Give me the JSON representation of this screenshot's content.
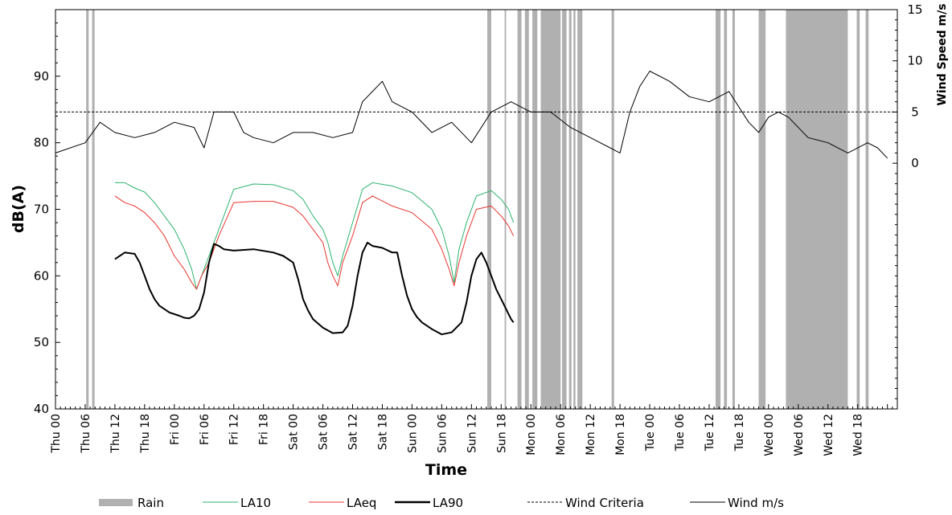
{
  "chart_data": {
    "type": "line",
    "xlabel": "Time",
    "ylabel": "dB(A)",
    "y2label": "Wind Speed m/s",
    "ylim": [
      40,
      100
    ],
    "yticks": [
      40,
      50,
      60,
      70,
      80,
      90
    ],
    "y2lim": [
      -24,
      15
    ],
    "y2ticks": [
      0,
      5,
      10,
      15
    ],
    "xlim_hours": [
      0,
      170
    ],
    "x_tick_labels": [
      "Thu 00",
      "Thu 06",
      "Thu 12",
      "Thu 18",
      "Fri 00",
      "Fri 06",
      "Fri 12",
      "Fri 18",
      "Sat 00",
      "Sat 06",
      "Sat 12",
      "Sat 18",
      "Sun 00",
      "Sun 06",
      "Sun 12",
      "Sun 18",
      "Mon 00",
      "Mon 06",
      "Mon 12",
      "Mon 18",
      "Tue 00",
      "Tue 06",
      "Tue 12",
      "Tue 18",
      "Wed 00",
      "Wed 06",
      "Wed 12",
      "Wed 18"
    ],
    "wind_criteria": 5,
    "rain_periods": [
      [
        6.2,
        6.7
      ],
      [
        7.4,
        7.9
      ],
      [
        87.2,
        88.0
      ],
      [
        90.7,
        91.0
      ],
      [
        93.3,
        94.1
      ],
      [
        94.8,
        95.6
      ],
      [
        96.3,
        97.3
      ],
      [
        98.0,
        102.0
      ],
      [
        102.3,
        103.2
      ],
      [
        103.7,
        104.2
      ],
      [
        104.6,
        105.0
      ],
      [
        105.4,
        106.4
      ],
      [
        112.3,
        112.8
      ],
      [
        133.3,
        134.3
      ],
      [
        135.0,
        135.6
      ],
      [
        136.7,
        137.2
      ],
      [
        142.0,
        143.4
      ],
      [
        147.5,
        160.0
      ],
      [
        161.8,
        162.4
      ],
      [
        163.6,
        164.2
      ]
    ],
    "series": [
      {
        "name": "LA10",
        "color": "#2db36f",
        "x": [
          12,
          14,
          16,
          18,
          20,
          22,
          24,
          26,
          27.5,
          28.5,
          29.5,
          31,
          33,
          36,
          40,
          44,
          48,
          50,
          52,
          54,
          55,
          56,
          57,
          58,
          60,
          62,
          64,
          68,
          72,
          76,
          78,
          79.5,
          80.5,
          81.5,
          83,
          85,
          88,
          90,
          91.5,
          92.5
        ],
        "y": [
          74,
          74,
          73.2,
          72.6,
          71,
          69,
          67,
          64,
          61,
          58,
          60,
          63,
          67,
          73,
          73.8,
          73.7,
          72.8,
          71.5,
          69,
          67,
          65,
          62,
          60,
          63,
          68,
          73,
          74,
          73.5,
          72.5,
          70,
          67,
          63,
          59,
          64,
          68,
          72,
          72.8,
          71.5,
          70,
          68
        ]
      },
      {
        "name": "LAeq",
        "color": "#e8362f",
        "x": [
          12,
          14,
          16,
          18,
          20,
          22,
          24,
          26,
          27.5,
          28.5,
          29.5,
          31,
          33,
          36,
          40,
          44,
          48,
          50,
          52,
          54,
          55,
          56,
          57,
          58,
          60,
          62,
          64,
          68,
          72,
          76,
          78,
          79.5,
          80.5,
          81.5,
          83,
          85,
          88,
          90,
          91.5,
          92.5
        ],
        "y": [
          72,
          71,
          70.5,
          69.5,
          68,
          66,
          63,
          61,
          59,
          58,
          60,
          62,
          66,
          71,
          71.2,
          71.2,
          70.3,
          69,
          67,
          65,
          62,
          60,
          58.5,
          62,
          66,
          71,
          72,
          70.5,
          69.5,
          67,
          64,
          61,
          58.5,
          62,
          66,
          70,
          70.5,
          69,
          67.5,
          66
        ]
      },
      {
        "name": "LA90",
        "color": "#000000",
        "x": [
          12,
          14,
          16,
          17,
          18,
          19,
          20,
          21,
          23,
          25,
          26,
          27,
          28,
          29,
          30,
          31,
          32,
          33,
          34,
          36,
          40,
          44,
          46,
          48,
          49,
          50,
          51,
          52,
          54,
          56,
          58,
          59,
          60,
          61,
          62,
          63,
          64,
          66,
          68,
          69,
          70,
          71,
          72,
          73,
          74,
          76,
          78,
          80,
          82,
          83,
          84,
          85,
          86,
          87,
          88,
          89,
          90,
          91,
          92,
          92.5
        ],
        "y": [
          62.5,
          63.5,
          63.3,
          62,
          60,
          58,
          56.5,
          55.5,
          54.5,
          54,
          53.7,
          53.6,
          54,
          55,
          57.5,
          62,
          64.8,
          64.5,
          64,
          63.8,
          64,
          63.5,
          63,
          62,
          59.5,
          56.5,
          54.8,
          53.5,
          52.2,
          51.4,
          51.5,
          52.5,
          55.5,
          60,
          63.5,
          65,
          64.5,
          64.2,
          63.5,
          63.5,
          60,
          57,
          55,
          53.8,
          53,
          52,
          51.2,
          51.5,
          53,
          56,
          60,
          62.5,
          63.5,
          62,
          60,
          58,
          56.5,
          55,
          53.5,
          53
        ]
      },
      {
        "name": "Wind m/s",
        "color": "#000000",
        "axis": "secondary",
        "x": [
          0,
          6,
          9,
          12,
          16,
          20,
          24,
          28,
          30,
          32,
          36,
          38,
          40,
          44,
          48,
          52,
          56,
          60,
          62,
          64,
          66,
          68,
          72,
          76,
          80,
          84,
          88,
          92,
          96,
          100,
          104,
          108,
          112,
          114,
          116,
          118,
          120,
          124,
          128,
          132,
          136,
          140,
          142,
          144,
          146,
          148,
          152,
          156,
          160,
          164,
          166,
          168
        ],
        "y": [
          1,
          2,
          4,
          3,
          2.5,
          3,
          4,
          3.5,
          1.5,
          5,
          5,
          3,
          2.5,
          2,
          3,
          3,
          2.5,
          3,
          6,
          7,
          8,
          6,
          5,
          3,
          4,
          2,
          5,
          6,
          5,
          5,
          3.5,
          2.5,
          1.5,
          1,
          5,
          7.5,
          9,
          8,
          6.5,
          6,
          7,
          4,
          3,
          4.5,
          5,
          4.5,
          2.5,
          2,
          1,
          2,
          1.5,
          0.5
        ]
      }
    ],
    "legend": {
      "position": "bottom",
      "items": [
        {
          "label": "Rain",
          "style": "bar",
          "color": "#b0b0b0"
        },
        {
          "label": "LA10",
          "style": "line",
          "color": "#2db36f"
        },
        {
          "label": "LAeq",
          "style": "line",
          "color": "#e8362f"
        },
        {
          "label": "LA90",
          "style": "thick",
          "color": "#000000"
        },
        {
          "label": "Wind Criteria",
          "style": "dashed",
          "color": "#000000"
        },
        {
          "label": "Wind m/s",
          "style": "line",
          "color": "#000000"
        }
      ]
    },
    "rain_color": "#b0b0b0",
    "grid": false
  }
}
